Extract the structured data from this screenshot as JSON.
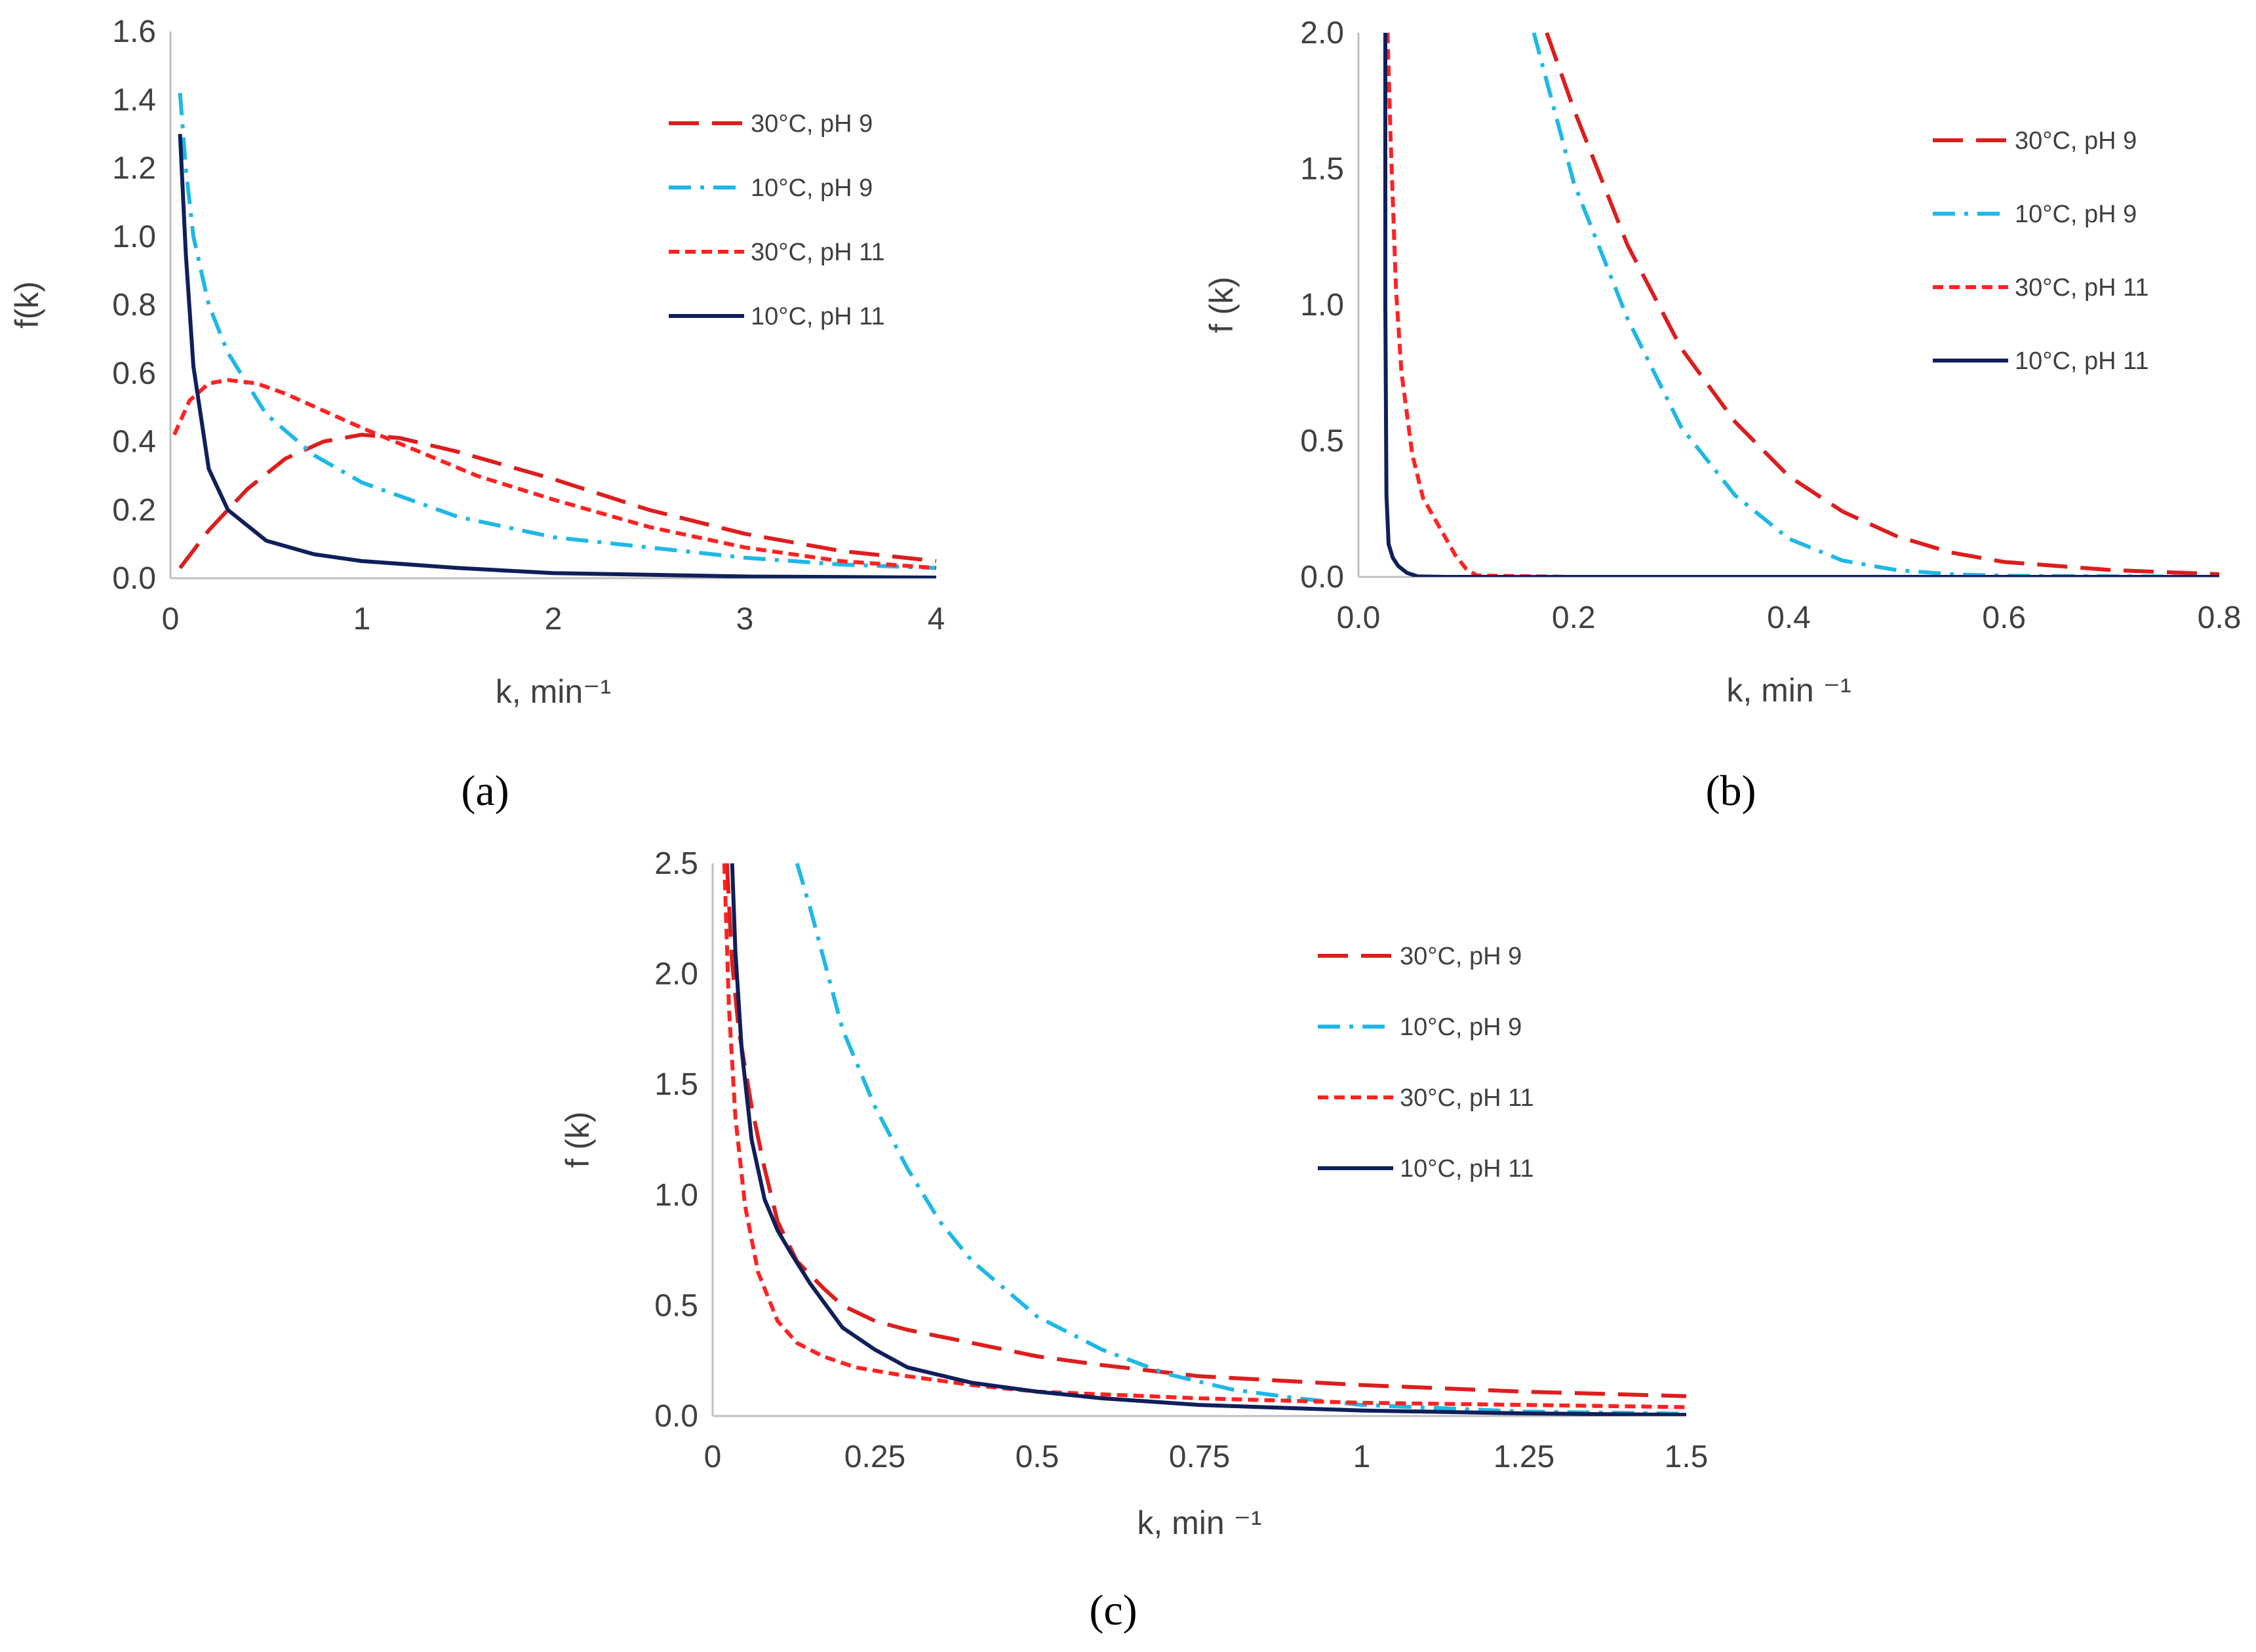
{
  "colors": {
    "30C_pH9": "#dc1e1e",
    "10C_pH9": "#1fb8e6",
    "30C_pH11": "#ff2222",
    "10C_pH11": "#0f1f5a"
  },
  "chart_data": [
    {
      "id": "a",
      "type": "line",
      "panel_label": "(a)",
      "xlabel": "k, min⁻¹",
      "ylabel": "f(k)",
      "xlim": [
        0,
        4
      ],
      "ylim": [
        0,
        1.6
      ],
      "xticks": [
        0,
        1,
        2,
        3,
        4
      ],
      "yticks": [
        0,
        0.2,
        0.4,
        0.6,
        0.8,
        1.0,
        1.2,
        1.4,
        1.6
      ],
      "xtick_decimals": 0,
      "ytick_decimals": 1,
      "grid": false,
      "legend": "top-right",
      "series": [
        {
          "key": "30C_pH9",
          "name": "30°C, pH 9",
          "dash": "long-dash",
          "x": [
            0.05,
            0.2,
            0.4,
            0.6,
            0.8,
            1.0,
            1.2,
            1.5,
            2.0,
            2.5,
            3.0,
            3.5,
            4.0
          ],
          "y": [
            0.03,
            0.14,
            0.26,
            0.35,
            0.4,
            0.42,
            0.41,
            0.37,
            0.29,
            0.2,
            0.13,
            0.08,
            0.05
          ]
        },
        {
          "key": "10C_pH9",
          "name": "10°C, pH 9",
          "dash": "dash-dot",
          "x": [
            0.05,
            0.08,
            0.12,
            0.2,
            0.3,
            0.5,
            0.75,
            1.0,
            1.5,
            2.0,
            2.5,
            3.0,
            3.5,
            4.0
          ],
          "y": [
            1.42,
            1.2,
            1.0,
            0.8,
            0.66,
            0.48,
            0.36,
            0.28,
            0.18,
            0.12,
            0.09,
            0.06,
            0.04,
            0.03
          ]
        },
        {
          "key": "30C_pH11",
          "name": "30°C, pH 11",
          "dash": "short-dash",
          "x": [
            0.02,
            0.1,
            0.2,
            0.3,
            0.45,
            0.6,
            0.8,
            1.0,
            1.3,
            1.6,
            2.0,
            2.5,
            3.0,
            3.5,
            4.0
          ],
          "y": [
            0.42,
            0.52,
            0.57,
            0.58,
            0.57,
            0.54,
            0.49,
            0.44,
            0.37,
            0.3,
            0.23,
            0.15,
            0.09,
            0.05,
            0.03
          ]
        },
        {
          "key": "10C_pH11",
          "name": "10°C, pH 11",
          "dash": "solid",
          "x": [
            0.05,
            0.08,
            0.12,
            0.2,
            0.3,
            0.5,
            0.75,
            1.0,
            1.5,
            2.0,
            3.0,
            4.0
          ],
          "y": [
            1.3,
            0.95,
            0.62,
            0.32,
            0.2,
            0.11,
            0.07,
            0.05,
            0.03,
            0.015,
            0.005,
            0.002
          ]
        }
      ]
    },
    {
      "id": "b",
      "type": "line",
      "panel_label": "(b)",
      "xlabel": "k, min ⁻¹",
      "ylabel": "f (k)",
      "xlim": [
        0,
        0.8
      ],
      "ylim": [
        0,
        2.0
      ],
      "xticks": [
        0,
        0.2,
        0.4,
        0.6,
        0.8
      ],
      "yticks": [
        0,
        0.5,
        1.0,
        1.5,
        2.0
      ],
      "xtick_decimals": 1,
      "ytick_decimals": 1,
      "grid": false,
      "legend": "top-right",
      "series": [
        {
          "key": "30C_pH9",
          "name": "30°C, pH 9",
          "dash": "long-dash",
          "x": [
            0.175,
            0.2,
            0.25,
            0.3,
            0.35,
            0.4,
            0.45,
            0.5,
            0.55,
            0.6,
            0.7,
            0.8
          ],
          "y": [
            2.0,
            1.72,
            1.22,
            0.84,
            0.57,
            0.37,
            0.24,
            0.15,
            0.09,
            0.055,
            0.025,
            0.01
          ]
        },
        {
          "key": "10C_pH9",
          "name": "10°C, pH 9",
          "dash": "dash-dot",
          "x": [
            0.163,
            0.2,
            0.25,
            0.3,
            0.35,
            0.4,
            0.45,
            0.5,
            0.55,
            0.6,
            0.8
          ],
          "y": [
            2.0,
            1.45,
            0.95,
            0.55,
            0.3,
            0.14,
            0.06,
            0.025,
            0.01,
            0.004,
            0.0
          ]
        },
        {
          "key": "30C_pH11",
          "name": "30°C, pH 11",
          "dash": "short-dash",
          "x": [
            0.027,
            0.03,
            0.035,
            0.04,
            0.05,
            0.06,
            0.07,
            0.08,
            0.09,
            0.1,
            0.11,
            0.2,
            0.8
          ],
          "y": [
            2.0,
            1.6,
            1.05,
            0.75,
            0.45,
            0.29,
            0.22,
            0.15,
            0.08,
            0.03,
            0.005,
            0.0,
            0.0
          ]
        },
        {
          "key": "10C_pH11",
          "name": "10°C, pH 11",
          "dash": "solid",
          "x": [
            0.025,
            0.025,
            0.026,
            0.028,
            0.032,
            0.037,
            0.045,
            0.055,
            0.08,
            0.8
          ],
          "y": [
            2.0,
            1.0,
            0.3,
            0.12,
            0.07,
            0.04,
            0.015,
            0.002,
            0.0,
            0.0
          ]
        }
      ]
    },
    {
      "id": "c",
      "type": "line",
      "panel_label": "(c)",
      "xlabel": "k, min ⁻¹",
      "ylabel": "f (k)",
      "xlim": [
        0,
        1.5
      ],
      "ylim": [
        0,
        2.5
      ],
      "xticks": [
        0,
        0.25,
        0.5,
        0.75,
        1,
        1.25,
        1.5
      ],
      "yticks": [
        0,
        0.5,
        1.0,
        1.5,
        2.0,
        2.5
      ],
      "xtick_decimals": -1,
      "ytick_decimals": 1,
      "grid": false,
      "legend": "top-right",
      "series": [
        {
          "key": "30C_pH9",
          "name": "30°C, pH 9",
          "dash": "long-dash",
          "x": [
            0.022,
            0.03,
            0.04,
            0.06,
            0.08,
            0.1,
            0.13,
            0.17,
            0.2,
            0.25,
            0.3,
            0.4,
            0.5,
            0.6,
            0.75,
            1.0,
            1.25,
            1.5
          ],
          "y": [
            2.5,
            2.05,
            1.75,
            1.4,
            1.12,
            0.88,
            0.7,
            0.58,
            0.5,
            0.43,
            0.39,
            0.33,
            0.27,
            0.23,
            0.18,
            0.14,
            0.11,
            0.09
          ]
        },
        {
          "key": "10C_pH9",
          "name": "10°C, pH 9",
          "dash": "dash-dot",
          "x": [
            0.13,
            0.15,
            0.2,
            0.25,
            0.3,
            0.35,
            0.4,
            0.5,
            0.6,
            0.7,
            0.8,
            0.9,
            1.0,
            1.25,
            1.5
          ],
          "y": [
            2.5,
            2.3,
            1.75,
            1.4,
            1.12,
            0.88,
            0.7,
            0.45,
            0.3,
            0.19,
            0.12,
            0.08,
            0.05,
            0.02,
            0.01
          ]
        },
        {
          "key": "30C_pH11",
          "name": "30°C, pH 11",
          "dash": "short-dash",
          "x": [
            0.018,
            0.025,
            0.035,
            0.05,
            0.07,
            0.1,
            0.13,
            0.17,
            0.22,
            0.3,
            0.4,
            0.5,
            0.75,
            1.0,
            1.25,
            1.5
          ],
          "y": [
            2.5,
            1.85,
            1.35,
            0.95,
            0.65,
            0.43,
            0.33,
            0.27,
            0.22,
            0.18,
            0.14,
            0.11,
            0.08,
            0.06,
            0.05,
            0.04
          ]
        },
        {
          "key": "10C_pH11",
          "name": "10°C, pH 11",
          "dash": "solid",
          "x": [
            0.03,
            0.035,
            0.045,
            0.06,
            0.08,
            0.1,
            0.12,
            0.15,
            0.2,
            0.25,
            0.3,
            0.4,
            0.5,
            0.6,
            0.75,
            1.0,
            1.25,
            1.5
          ],
          "y": [
            2.5,
            2.1,
            1.65,
            1.25,
            0.98,
            0.84,
            0.74,
            0.6,
            0.4,
            0.3,
            0.22,
            0.15,
            0.11,
            0.08,
            0.05,
            0.025,
            0.012,
            0.005
          ]
        }
      ]
    }
  ]
}
